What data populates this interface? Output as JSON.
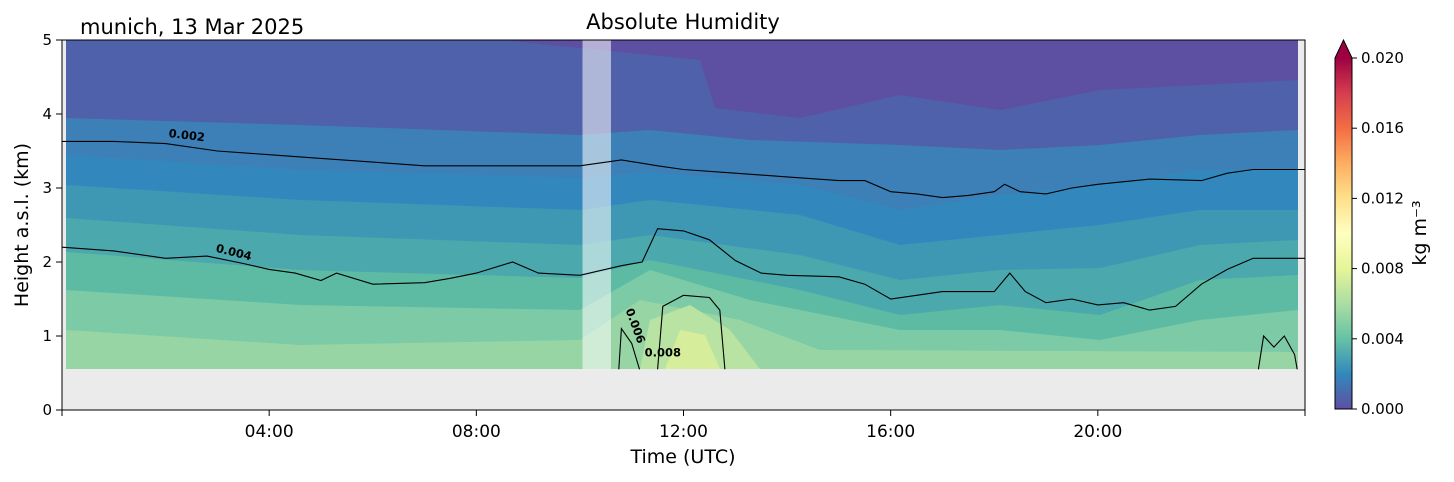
{
  "site_date": "munich, 13 Mar 2025",
  "chart_data": {
    "type": "heatmap",
    "title": "Absolute Humidity",
    "xlabel": "Time (UTC)",
    "ylabel": "Height a.s.l. (km)",
    "xlim_hours": [
      0,
      24
    ],
    "ylim_km": [
      0,
      5
    ],
    "x_tick_hours": [
      4,
      8,
      12,
      16,
      20
    ],
    "x_tick_labels": [
      "04:00",
      "08:00",
      "12:00",
      "16:00",
      "20:00"
    ],
    "y_tick_values": [
      0,
      1,
      2,
      3,
      4,
      5
    ],
    "y_tick_labels": [
      "0",
      "1",
      "2",
      "3",
      "4",
      "5"
    ],
    "data_bottom_km": 0.55,
    "missing_data_hours": [
      10.05,
      10.6
    ],
    "colorbar": {
      "label": "kg m⁻³",
      "min": 0.0,
      "max": 0.02,
      "ticks": [
        0.0,
        0.004,
        0.008,
        0.012,
        0.016,
        0.02
      ],
      "tick_labels": [
        "0.000",
        "0.004",
        "0.008",
        "0.012",
        "0.016",
        "0.020"
      ],
      "extend": "max",
      "colormap": "Spectral_r"
    },
    "contours": [
      {
        "level_label": "0.002",
        "points_hours_km": [
          [
            0,
            3.63
          ],
          [
            1,
            3.63
          ],
          [
            2,
            3.6
          ],
          [
            3,
            3.5
          ],
          [
            4,
            3.45
          ],
          [
            5,
            3.4
          ],
          [
            6,
            3.35
          ],
          [
            7,
            3.3
          ],
          [
            8,
            3.3
          ],
          [
            9,
            3.3
          ],
          [
            10,
            3.3
          ],
          [
            10.8,
            3.38
          ],
          [
            11.5,
            3.3
          ],
          [
            12,
            3.25
          ],
          [
            13,
            3.2
          ],
          [
            14,
            3.15
          ],
          [
            15,
            3.1
          ],
          [
            15.5,
            3.1
          ],
          [
            16,
            2.95
          ],
          [
            16.5,
            2.92
          ],
          [
            17,
            2.87
          ],
          [
            17.5,
            2.9
          ],
          [
            18,
            2.95
          ],
          [
            18.2,
            3.05
          ],
          [
            18.5,
            2.95
          ],
          [
            19,
            2.92
          ],
          [
            19.5,
            3.0
          ],
          [
            20,
            3.05
          ],
          [
            21,
            3.12
          ],
          [
            22,
            3.1
          ],
          [
            22.5,
            3.2
          ],
          [
            23,
            3.25
          ],
          [
            24,
            3.25
          ]
        ]
      },
      {
        "level_label": "0.004",
        "points_hours_km": [
          [
            0,
            2.2
          ],
          [
            1,
            2.15
          ],
          [
            2,
            2.05
          ],
          [
            2.8,
            2.08
          ],
          [
            3.5,
            1.98
          ],
          [
            4,
            1.9
          ],
          [
            4.5,
            1.85
          ],
          [
            5,
            1.75
          ],
          [
            5.3,
            1.85
          ],
          [
            6,
            1.7
          ],
          [
            7,
            1.72
          ],
          [
            7.5,
            1.78
          ],
          [
            8,
            1.85
          ],
          [
            8.7,
            2.0
          ],
          [
            9.2,
            1.85
          ],
          [
            10,
            1.82
          ],
          [
            10.8,
            1.95
          ],
          [
            11.2,
            2.0
          ],
          [
            11.5,
            2.45
          ],
          [
            12,
            2.42
          ],
          [
            12.5,
            2.3
          ],
          [
            13,
            2.02
          ],
          [
            13.5,
            1.85
          ],
          [
            14,
            1.82
          ],
          [
            15,
            1.8
          ],
          [
            15.5,
            1.7
          ],
          [
            16,
            1.5
          ],
          [
            16.5,
            1.55
          ],
          [
            17,
            1.6
          ],
          [
            18,
            1.6
          ],
          [
            18.3,
            1.85
          ],
          [
            18.6,
            1.6
          ],
          [
            19,
            1.45
          ],
          [
            19.5,
            1.5
          ],
          [
            20,
            1.42
          ],
          [
            20.5,
            1.45
          ],
          [
            21,
            1.35
          ],
          [
            21.5,
            1.4
          ],
          [
            22,
            1.7
          ],
          [
            22.5,
            1.9
          ],
          [
            23,
            2.05
          ],
          [
            24,
            2.05
          ]
        ]
      },
      {
        "level_label": "0.006",
        "points_hours_km": [
          [
            10.75,
            0.55
          ],
          [
            10.8,
            1.1
          ],
          [
            11.0,
            0.9
          ],
          [
            11.15,
            0.55
          ]
        ]
      },
      {
        "level_label": "0.008",
        "points_hours_km": [
          [
            11.5,
            0.55
          ],
          [
            11.6,
            1.4
          ],
          [
            12,
            1.55
          ],
          [
            12.5,
            1.52
          ],
          [
            12.7,
            1.35
          ],
          [
            12.8,
            0.55
          ]
        ]
      },
      {
        "level_label": "",
        "points_hours_km": [
          [
            23.1,
            0.55
          ],
          [
            23.2,
            1.0
          ],
          [
            23.4,
            0.85
          ],
          [
            23.6,
            1.0
          ],
          [
            23.8,
            0.75
          ],
          [
            23.85,
            0.55
          ]
        ]
      }
    ],
    "contour_labels": [
      {
        "text": "0.002",
        "hour": 2.4,
        "km": 3.66
      },
      {
        "text": "0.004",
        "hour": 3.3,
        "km": 2.08
      },
      {
        "text": "0.006",
        "hour": 11.0,
        "km": 1.12
      },
      {
        "text": "0.008",
        "hour": 11.6,
        "km": 0.72
      }
    ]
  }
}
